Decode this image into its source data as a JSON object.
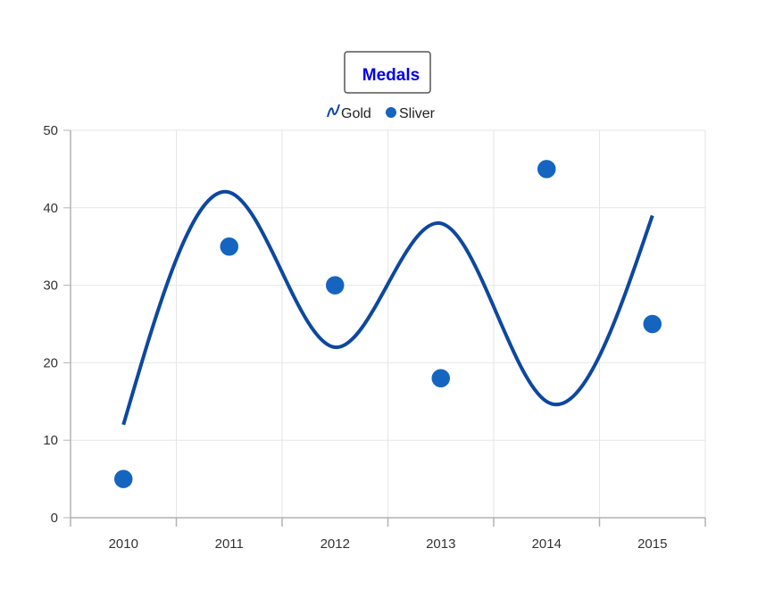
{
  "chart_data": {
    "type": "line",
    "title": "Medals",
    "categories": [
      "2010",
      "2011",
      "2012",
      "2013",
      "2014",
      "2015"
    ],
    "series": [
      {
        "name": "Gold",
        "type": "spline",
        "values": [
          12,
          42,
          22,
          38,
          15,
          39
        ],
        "color": "#0d47a1"
      },
      {
        "name": "Sliver",
        "type": "scatter",
        "values": [
          5,
          35,
          30,
          18,
          45,
          25
        ],
        "color": "#1565c0"
      }
    ],
    "ylim": [
      0,
      50
    ],
    "y_ticks": [
      0,
      10,
      20,
      30,
      40,
      50
    ],
    "grid": true,
    "legend_position": "top"
  }
}
